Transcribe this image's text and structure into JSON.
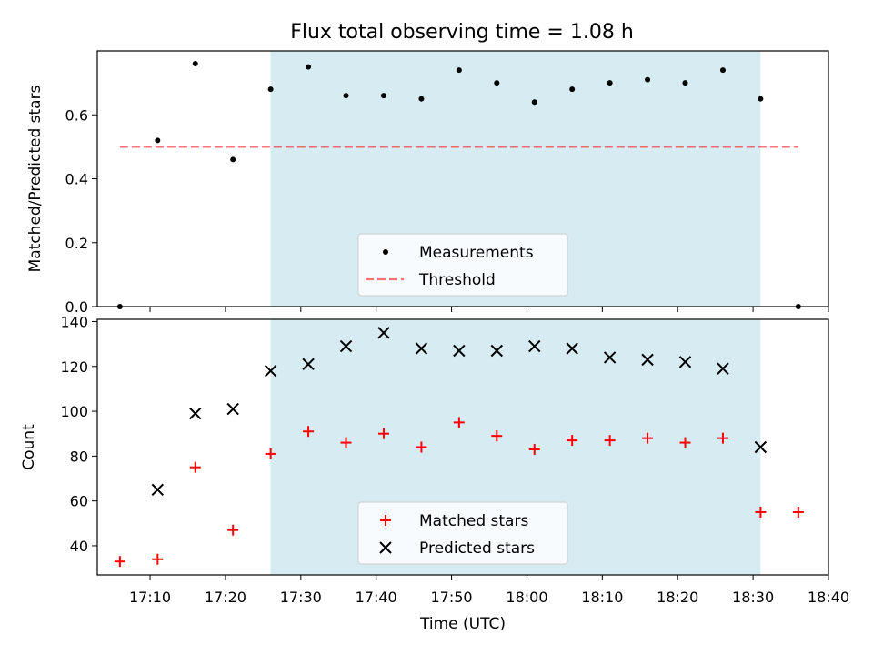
{
  "chart_data": [
    {
      "type": "scatter",
      "title": "Flux total observing time = 1.08 h",
      "xlabel": "",
      "ylabel": "Matched/Predicted stars",
      "ylim": [
        0,
        0.8
      ],
      "yticks": [
        "0.0",
        "0.2",
        "0.4",
        "0.6"
      ],
      "yticks_values": [
        0.0,
        0.2,
        0.4,
        0.6
      ],
      "highlight_span": [
        "17:26",
        "18:31"
      ],
      "highlight_color": "#add8e6",
      "legend_position": "lower center",
      "threshold": {
        "name": "Threshold",
        "y": 0.5,
        "x_range": [
          "17:06",
          "18:36"
        ],
        "color": "#ff0000"
      },
      "series": [
        {
          "name": "Measurements",
          "color": "#000000",
          "marker": "dot",
          "x": [
            "17:06",
            "17:11",
            "17:16",
            "17:21",
            "17:26",
            "17:31",
            "17:36",
            "17:41",
            "17:46",
            "17:51",
            "17:56",
            "18:01",
            "18:06",
            "18:11",
            "18:16",
            "18:21",
            "18:26",
            "18:31",
            "18:36"
          ],
          "y": [
            0.0,
            0.52,
            0.76,
            0.46,
            0.68,
            0.75,
            0.66,
            0.66,
            0.65,
            0.74,
            0.7,
            0.64,
            0.68,
            0.7,
            0.71,
            0.7,
            0.74,
            0.65,
            0.0
          ]
        }
      ]
    },
    {
      "type": "scatter",
      "xlabel": "Time (UTC)",
      "ylabel": "Count",
      "ylim": [
        27,
        141
      ],
      "yticks": [
        "40",
        "60",
        "80",
        "100",
        "120",
        "140"
      ],
      "yticks_values": [
        40,
        60,
        80,
        100,
        120,
        140
      ],
      "xticks": [
        "17:10",
        "17:20",
        "17:30",
        "17:40",
        "17:50",
        "18:00",
        "18:10",
        "18:20",
        "18:30",
        "18:40"
      ],
      "xlim": [
        "17:03",
        "18:40"
      ],
      "highlight_span": [
        "17:26",
        "18:31"
      ],
      "highlight_color": "#add8e6",
      "legend_position": "lower center",
      "series": [
        {
          "name": "Matched stars",
          "color": "#ff0000",
          "marker": "plus",
          "x": [
            "17:06",
            "17:11",
            "17:16",
            "17:21",
            "17:26",
            "17:31",
            "17:36",
            "17:41",
            "17:46",
            "17:51",
            "17:56",
            "18:01",
            "18:06",
            "18:11",
            "18:16",
            "18:21",
            "18:26",
            "18:31",
            "18:36"
          ],
          "y": [
            33,
            34,
            75,
            47,
            81,
            91,
            86,
            90,
            84,
            95,
            89,
            83,
            87,
            87,
            88,
            86,
            88,
            55,
            55
          ]
        },
        {
          "name": "Predicted stars",
          "color": "#000000",
          "marker": "x",
          "x": [
            "17:11",
            "17:16",
            "17:21",
            "17:26",
            "17:31",
            "17:36",
            "17:41",
            "17:46",
            "17:51",
            "17:56",
            "18:01",
            "18:06",
            "18:11",
            "18:16",
            "18:21",
            "18:26",
            "18:31"
          ],
          "y": [
            65,
            99,
            101,
            118,
            121,
            129,
            135,
            128,
            127,
            127,
            129,
            128,
            124,
            123,
            122,
            119,
            84
          ]
        }
      ]
    }
  ]
}
